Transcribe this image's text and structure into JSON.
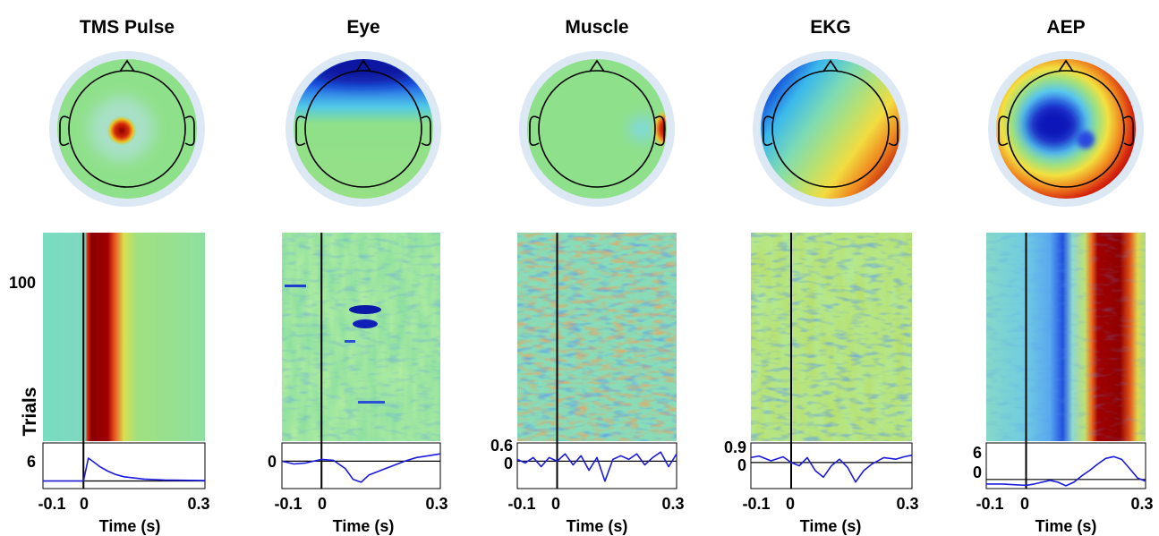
{
  "chart_data": [
    {
      "type": "heatmap",
      "title": "TMS Pulse",
      "xlabel": "Time (s)",
      "ylabel": "Trials",
      "xlim": [
        -0.1,
        0.3
      ],
      "x_ticks": [
        "-0.1",
        "0",
        "0.3"
      ],
      "y_ticks": [
        "100"
      ],
      "erp_ticks": [
        "6"
      ],
      "erp_ylim": [
        -2,
        10
      ],
      "topo_colors": {
        "background": "#8fe08a",
        "hotspot": "#c40000"
      },
      "erp_series": [
        [
          -0.1,
          0
        ],
        [
          -0.05,
          0
        ],
        [
          0,
          0
        ],
        [
          0.004,
          2
        ],
        [
          0.012,
          6
        ],
        [
          0.02,
          5.4
        ],
        [
          0.04,
          3.8
        ],
        [
          0.06,
          2.6
        ],
        [
          0.08,
          1.7
        ],
        [
          0.1,
          1.1
        ],
        [
          0.15,
          0.5
        ],
        [
          0.2,
          0.25
        ],
        [
          0.3,
          0.1
        ]
      ]
    },
    {
      "type": "heatmap",
      "title": "Eye",
      "xlabel": "Time (s)",
      "xlim": [
        -0.1,
        0.3
      ],
      "x_ticks": [
        "-0.1",
        "0",
        "0.3"
      ],
      "erp_ticks": [
        "0"
      ],
      "erp_ylim": [
        -3,
        2
      ],
      "topo_colors": {
        "background": "#8fe08a",
        "frontal": "#1a2fd6"
      },
      "erp_series": [
        [
          -0.1,
          0
        ],
        [
          -0.07,
          -0.3
        ],
        [
          -0.04,
          -0.2
        ],
        [
          0,
          0.2
        ],
        [
          0.03,
          0.1
        ],
        [
          0.06,
          -0.8
        ],
        [
          0.08,
          -2.0
        ],
        [
          0.1,
          -2.3
        ],
        [
          0.12,
          -1.5
        ],
        [
          0.15,
          -1.0
        ],
        [
          0.18,
          -0.5
        ],
        [
          0.21,
          0
        ],
        [
          0.24,
          0.4
        ],
        [
          0.27,
          0.6
        ],
        [
          0.3,
          0.8
        ]
      ]
    },
    {
      "type": "heatmap",
      "title": "Muscle",
      "xlabel": "Time (s)",
      "xlim": [
        -0.1,
        0.3
      ],
      "x_ticks": [
        "-0.1",
        "0",
        "0.3"
      ],
      "erp_ticks": [
        "0.6",
        "0"
      ],
      "erp_ylim": [
        -1.5,
        1
      ],
      "topo_colors": {
        "background": "#8fe08a",
        "hotspot": "#c40000"
      },
      "erp_series": [
        [
          -0.1,
          0.1
        ],
        [
          -0.08,
          -0.1
        ],
        [
          -0.06,
          0.2
        ],
        [
          -0.04,
          -0.3
        ],
        [
          -0.02,
          0.2
        ],
        [
          0,
          0
        ],
        [
          0.02,
          0.4
        ],
        [
          0.04,
          -0.2
        ],
        [
          0.06,
          0.3
        ],
        [
          0.08,
          -0.5
        ],
        [
          0.1,
          0.2
        ],
        [
          0.12,
          -1.1
        ],
        [
          0.14,
          0.1
        ],
        [
          0.16,
          0.3
        ],
        [
          0.18,
          0.1
        ],
        [
          0.2,
          0.4
        ],
        [
          0.22,
          -0.2
        ],
        [
          0.24,
          0.2
        ],
        [
          0.26,
          0.5
        ],
        [
          0.28,
          -0.3
        ],
        [
          0.3,
          0.4
        ]
      ]
    },
    {
      "type": "heatmap",
      "title": "EKG",
      "xlabel": "Time (s)",
      "xlim": [
        -0.1,
        0.3
      ],
      "x_ticks": [
        "-0.1",
        "0",
        "0.3"
      ],
      "erp_ticks": [
        "0.9",
        "0"
      ],
      "erp_ylim": [
        -1.6,
        1.2
      ],
      "topo_colors": {
        "blue_side": "#1e6ee0",
        "red_side": "#c8190a"
      },
      "erp_series": [
        [
          -0.1,
          0.3
        ],
        [
          -0.08,
          0.4
        ],
        [
          -0.05,
          0.1
        ],
        [
          -0.02,
          0.35
        ],
        [
          0,
          0
        ],
        [
          0.02,
          -0.2
        ],
        [
          0.04,
          0.3
        ],
        [
          0.06,
          -0.5
        ],
        [
          0.08,
          -0.9
        ],
        [
          0.1,
          -0.2
        ],
        [
          0.12,
          0.2
        ],
        [
          0.14,
          -0.3
        ],
        [
          0.16,
          -1.2
        ],
        [
          0.18,
          -0.5
        ],
        [
          0.2,
          -0.1
        ],
        [
          0.23,
          0.3
        ],
        [
          0.26,
          0.2
        ],
        [
          0.28,
          0.35
        ],
        [
          0.3,
          0.45
        ]
      ]
    },
    {
      "type": "heatmap",
      "title": "AEP",
      "xlabel": "Time (s)",
      "xlim": [
        -0.1,
        0.3
      ],
      "x_ticks": [
        "-0.1",
        "0",
        "0.3"
      ],
      "erp_ticks": [
        "6",
        "0"
      ],
      "erp_ylim": [
        -2,
        8
      ],
      "topo_colors": {
        "rim": "#cc1a0a",
        "center": "#2040e0"
      },
      "erp_series": [
        [
          -0.1,
          -1.0
        ],
        [
          -0.06,
          -1.0
        ],
        [
          -0.02,
          -1.2
        ],
        [
          0,
          -1.3
        ],
        [
          0.02,
          -1.0
        ],
        [
          0.04,
          -0.6
        ],
        [
          0.06,
          -0.2
        ],
        [
          0.08,
          -0.6
        ],
        [
          0.1,
          -1.4
        ],
        [
          0.12,
          -0.6
        ],
        [
          0.14,
          0.8
        ],
        [
          0.16,
          2.0
        ],
        [
          0.18,
          3.4
        ],
        [
          0.2,
          4.6
        ],
        [
          0.22,
          5.0
        ],
        [
          0.24,
          4.4
        ],
        [
          0.26,
          2.4
        ],
        [
          0.28,
          0.3
        ],
        [
          0.3,
          -0.4
        ]
      ]
    }
  ]
}
